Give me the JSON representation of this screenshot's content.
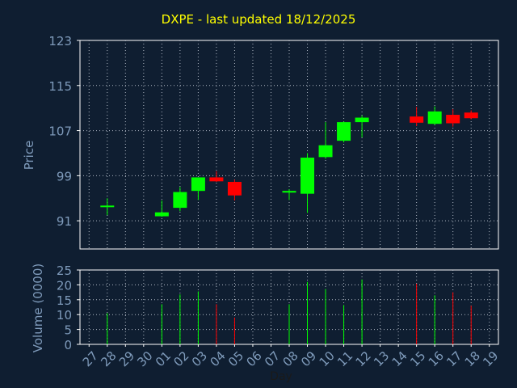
{
  "chart_data": {
    "type": "candlestick",
    "title": "DXPE - last updated 18/12/2025",
    "xlabel": "Day",
    "price": {
      "ylabel": "Price",
      "ylim": [
        86,
        123
      ],
      "yticks": [
        91,
        99,
        107,
        115,
        123
      ],
      "grid": true
    },
    "volume": {
      "ylabel": "Volume (0000)",
      "ylim": [
        0,
        25
      ],
      "yticks": [
        0,
        5,
        10,
        15,
        20,
        25
      ],
      "grid": true
    },
    "x_ticks": [
      "27",
      "28",
      "29",
      "30",
      "01",
      "02",
      "03",
      "04",
      "05",
      "06",
      "07",
      "08",
      "09",
      "10",
      "11",
      "12",
      "13",
      "14",
      "15",
      "16",
      "17",
      "18",
      "19"
    ],
    "candles": [
      {
        "day": "28",
        "open": 93.7,
        "high": 95.0,
        "low": 92.0,
        "close": 93.7,
        "volume": 10.5
      },
      {
        "day": "01",
        "open": 91.8,
        "high": 94.6,
        "low": 91.7,
        "close": 92.5,
        "volume": 13.5
      },
      {
        "day": "02",
        "open": 93.3,
        "high": 97.0,
        "low": 92.7,
        "close": 96.1,
        "volume": 16.8
      },
      {
        "day": "03",
        "open": 96.3,
        "high": 98.7,
        "low": 94.7,
        "close": 98.7,
        "volume": 17.8
      },
      {
        "day": "04",
        "open": 98.7,
        "high": 99.8,
        "low": 97.9,
        "close": 98.0,
        "volume": 13.5
      },
      {
        "day": "05",
        "open": 97.9,
        "high": 98.3,
        "low": 94.6,
        "close": 95.5,
        "volume": 9.0
      },
      {
        "day": "08",
        "open": 96.0,
        "high": 96.6,
        "low": 94.7,
        "close": 96.3,
        "volume": 13.5
      },
      {
        "day": "09",
        "open": 95.8,
        "high": 103.0,
        "low": 92.4,
        "close": 102.2,
        "volume": 21.0
      },
      {
        "day": "10",
        "open": 102.3,
        "high": 108.5,
        "low": 102.0,
        "close": 104.4,
        "volume": 18.6
      },
      {
        "day": "11",
        "open": 105.2,
        "high": 108.6,
        "low": 104.9,
        "close": 108.5,
        "volume": 13.2
      },
      {
        "day": "12",
        "open": 108.5,
        "high": 109.7,
        "low": 105.8,
        "close": 109.3,
        "volume": 21.8
      },
      {
        "day": "15",
        "open": 109.5,
        "high": 111.2,
        "low": 107.8,
        "close": 108.4,
        "volume": 20.4
      },
      {
        "day": "16",
        "open": 108.2,
        "high": 111.3,
        "low": 108.0,
        "close": 110.4,
        "volume": 16.5
      },
      {
        "day": "17",
        "open": 109.8,
        "high": 110.8,
        "low": 107.7,
        "close": 108.3,
        "volume": 17.5
      },
      {
        "day": "18",
        "open": 110.2,
        "high": 110.6,
        "low": 109.0,
        "close": 109.2,
        "volume": 13.0
      }
    ],
    "colors": {
      "background": "#0f1e31",
      "frame": "#ffffff",
      "grid": "#b0b8c4",
      "tick_text": "#7f9bbb",
      "up": "#00ff00",
      "down": "#ff0000",
      "title": "#ffff00"
    }
  }
}
